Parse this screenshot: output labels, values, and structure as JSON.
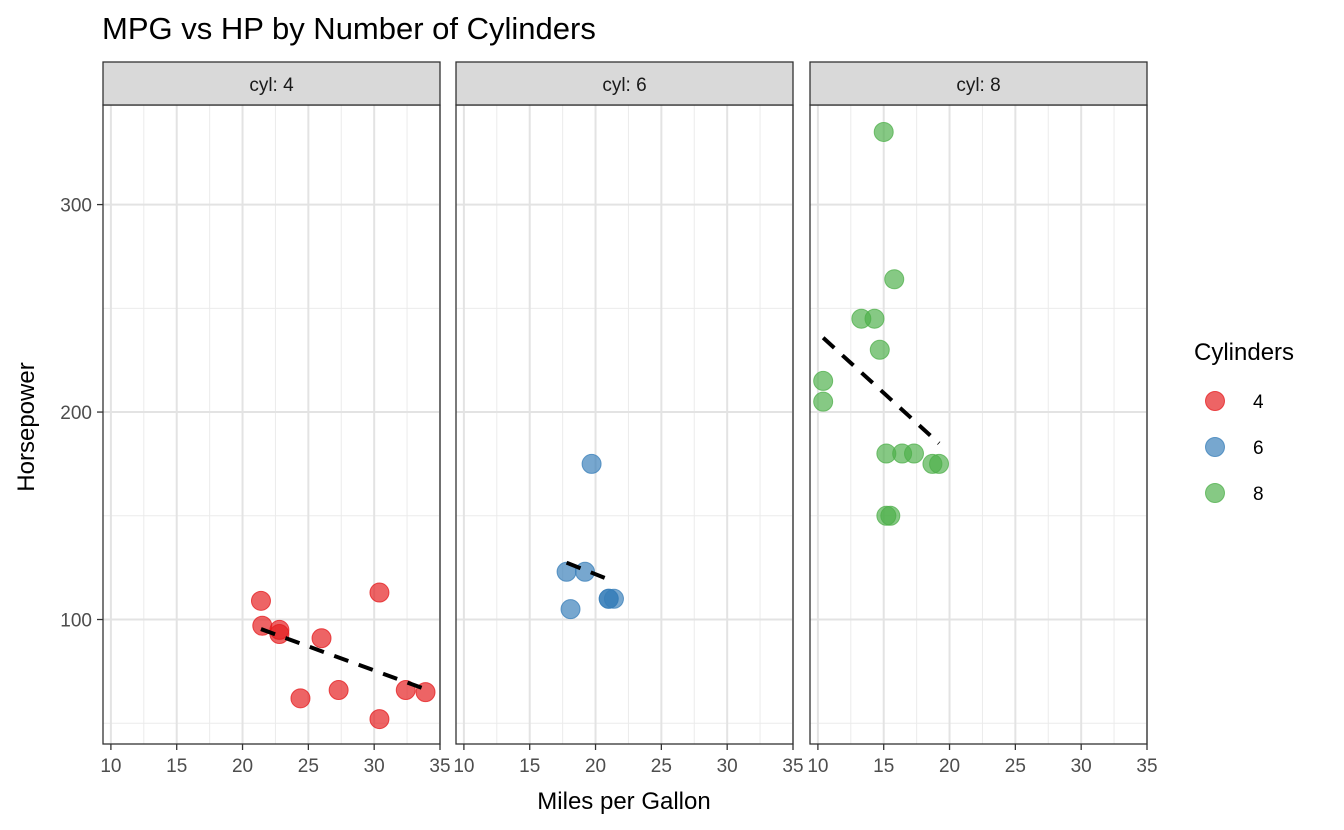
{
  "chart_data": {
    "type": "scatter",
    "title": "MPG vs HP by Number of Cylinders",
    "xlabel": "Miles per Gallon",
    "ylabel": "Horsepower",
    "xlim": [
      9.4,
      35
    ],
    "ylim": [
      40,
      348
    ],
    "x_ticks": [
      10,
      15,
      20,
      25,
      30,
      35
    ],
    "y_ticks": [
      100,
      200,
      300
    ],
    "grid": true,
    "legend": {
      "title": "Cylinders",
      "placement": "right",
      "entries": [
        {
          "label": "4",
          "color": "#E41A1C"
        },
        {
          "label": "6",
          "color": "#377EB8"
        },
        {
          "label": "8",
          "color": "#4DAF4A"
        }
      ]
    },
    "trend_line": {
      "style": "dashed",
      "color": "#000000"
    },
    "facets": [
      {
        "label": "cyl: 4",
        "color": "#E41A1C",
        "points": [
          [
            22.8,
            93
          ],
          [
            24.4,
            62
          ],
          [
            22.8,
            95
          ],
          [
            32.4,
            66
          ],
          [
            30.4,
            52
          ],
          [
            33.9,
            65
          ],
          [
            21.5,
            97
          ],
          [
            27.3,
            66
          ],
          [
            26.0,
            91
          ],
          [
            30.4,
            113
          ],
          [
            21.4,
            109
          ]
        ],
        "trend": {
          "x": [
            21.4,
            33.9
          ],
          "y": [
            95.4,
            66.4
          ]
        }
      },
      {
        "label": "cyl: 6",
        "color": "#377EB8",
        "points": [
          [
            21.0,
            110
          ],
          [
            21.0,
            110
          ],
          [
            21.4,
            110
          ],
          [
            18.1,
            105
          ],
          [
            19.2,
            123
          ],
          [
            17.8,
            123
          ],
          [
            19.7,
            175
          ]
        ],
        "trend": {
          "x": [
            17.8,
            21.4
          ],
          "y": [
            127.4,
            118.3
          ]
        }
      },
      {
        "label": "cyl: 8",
        "color": "#4DAF4A",
        "points": [
          [
            18.7,
            175
          ],
          [
            14.3,
            245
          ],
          [
            16.4,
            180
          ],
          [
            17.3,
            180
          ],
          [
            15.2,
            180
          ],
          [
            10.4,
            205
          ],
          [
            10.4,
            215
          ],
          [
            14.7,
            230
          ],
          [
            15.5,
            150
          ],
          [
            15.2,
            150
          ],
          [
            13.3,
            245
          ],
          [
            19.2,
            175
          ],
          [
            15.8,
            264
          ],
          [
            15.0,
            335
          ]
        ],
        "trend": {
          "x": [
            10.4,
            19.2
          ],
          "y": [
            235.8,
            184.9
          ]
        }
      }
    ]
  }
}
